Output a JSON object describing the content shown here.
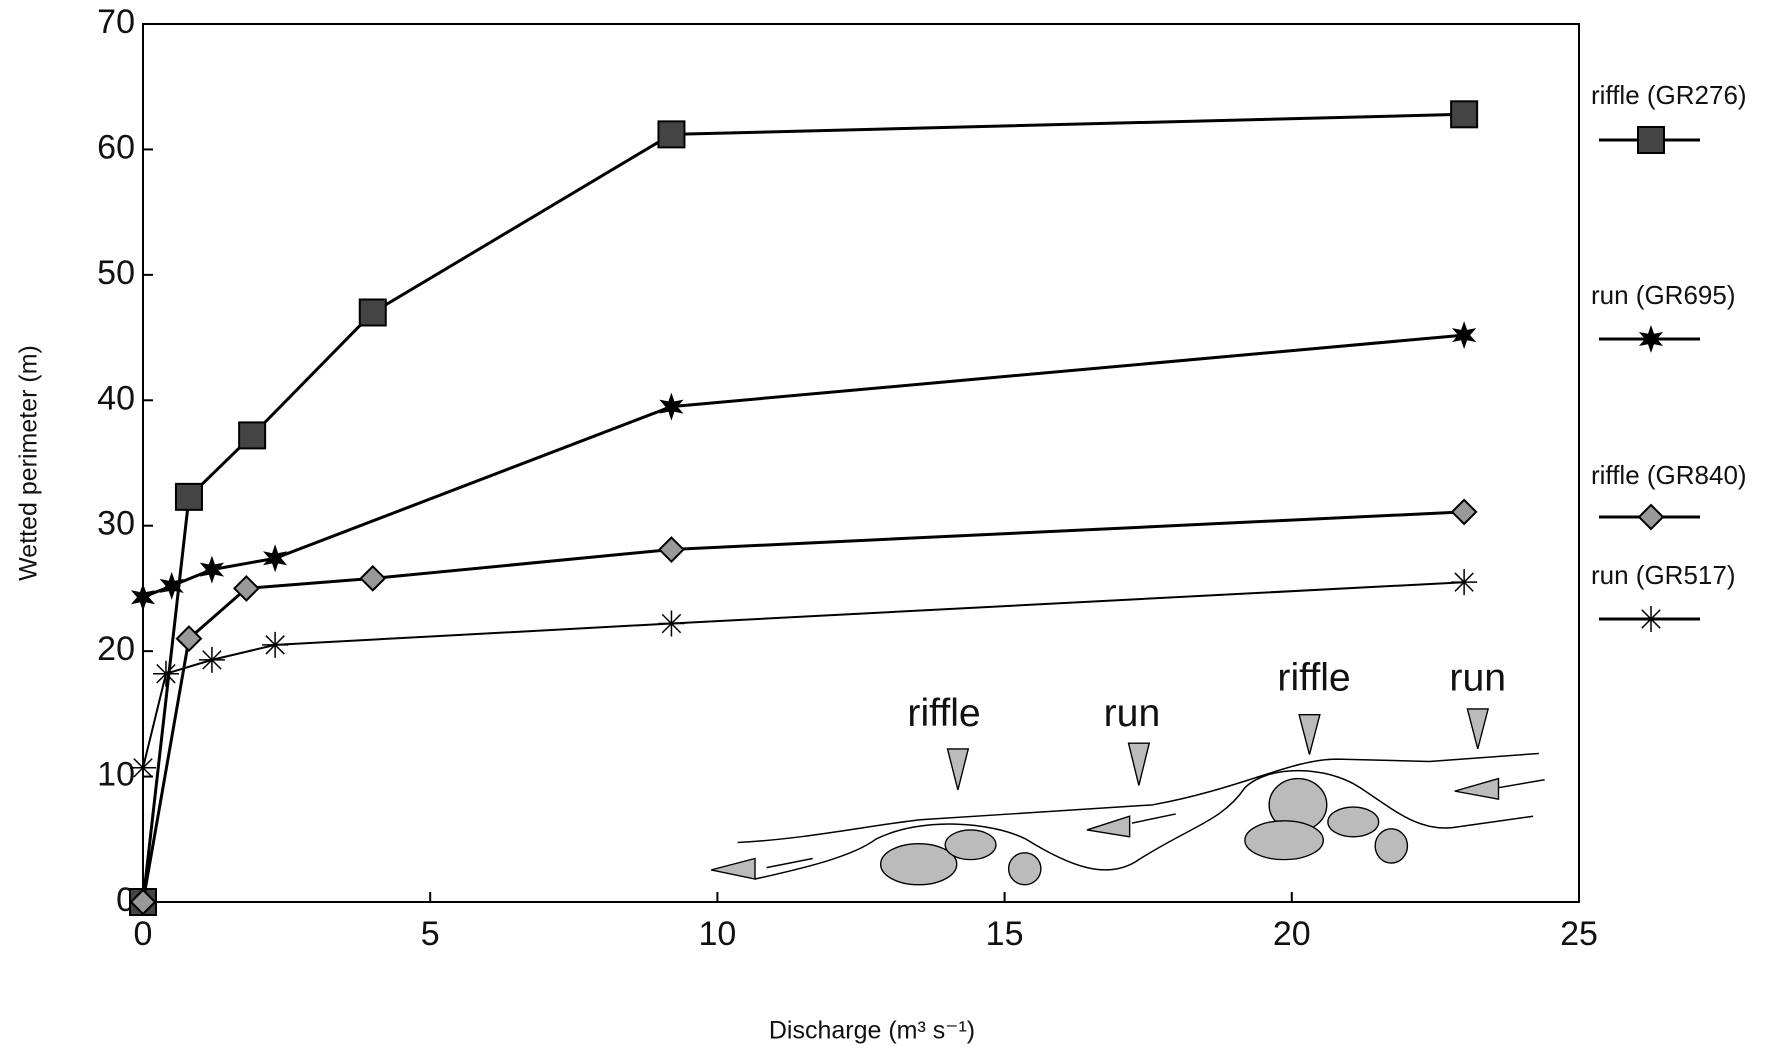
{
  "chart_data": {
    "type": "line",
    "xlabel": "Discharge (m³ s⁻¹)",
    "ylabel": "Wetted perimeter (m)",
    "xlim": [
      0,
      25
    ],
    "xticks": [
      0,
      5,
      10,
      15,
      20,
      25
    ],
    "ylim": [
      0,
      70
    ],
    "yticks": [
      0,
      10,
      20,
      30,
      40,
      50,
      60,
      70
    ],
    "grid": false,
    "legend": "right",
    "series": [
      {
        "name": "riffle (GR276)",
        "color": "#000000",
        "marker": "square",
        "x": [
          0,
          0.8,
          1.9,
          4,
          9.2,
          23
        ],
        "values": [
          0,
          32.3,
          37.2,
          47,
          61.2,
          62.8
        ]
      },
      {
        "name": "run (GR695)",
        "color": "#000000",
        "marker": "star",
        "x": [
          0,
          0.5,
          1.2,
          2.3,
          9.2,
          23
        ],
        "values": [
          24.3,
          25.2,
          26.5,
          27.4,
          39.5,
          45.2
        ]
      },
      {
        "name": "riffle (GR840)",
        "color": "#000000",
        "marker": "diamond",
        "x": [
          0,
          0.8,
          1.8,
          4,
          9.2,
          23
        ],
        "values": [
          0,
          21,
          25,
          25.8,
          28.1,
          31.1
        ]
      },
      {
        "name": "run (GR517)",
        "color": "#000000",
        "marker": "asterisk",
        "x": [
          0,
          0.4,
          1.2,
          2.3,
          9.2,
          23
        ],
        "values": [
          10.7,
          18.2,
          19.3,
          20.5,
          22.2,
          25.5
        ]
      }
    ],
    "annotations": [
      "riffle",
      "run",
      "riffle",
      "run"
    ]
  }
}
